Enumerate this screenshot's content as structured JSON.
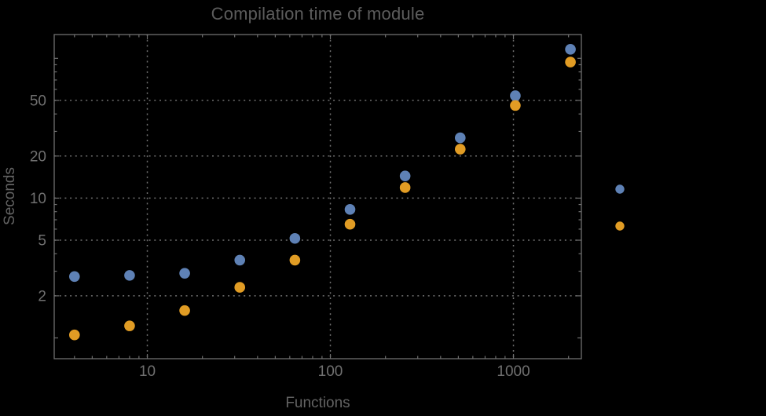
{
  "background": "#000000",
  "styles": {
    "frame_color": "#6f6f6f",
    "grid_color": "#707070",
    "tick_label_color": "#707070",
    "title_color": "#5c5c5c",
    "axis_label_color": "#636363",
    "series1_color": "#5e81b5",
    "series2_color": "#e19c24"
  },
  "chart_data": {
    "type": "scatter",
    "title": "Compilation time of module",
    "xlabel": "Functions",
    "ylabel": "Seconds",
    "x_scale": "log",
    "y_scale": "log",
    "xlim": [
      3.1,
      2350
    ],
    "ylim": [
      0.71,
      148
    ],
    "x_major_ticks": [
      10,
      100,
      1000
    ],
    "x_tick_labels": [
      "10",
      "100",
      "1000"
    ],
    "x_minor_ticks": [
      4,
      5,
      6,
      7,
      8,
      9,
      20,
      30,
      40,
      50,
      60,
      70,
      80,
      90,
      200,
      300,
      400,
      500,
      600,
      700,
      800,
      900,
      2000
    ],
    "y_major_ticks": [
      2,
      5,
      10,
      20,
      50
    ],
    "y_tick_labels": [
      "2",
      "5",
      "10",
      "20",
      "50"
    ],
    "y_medium_ticks": [
      1,
      100
    ],
    "y_minor_ticks": [
      3,
      4,
      6,
      7,
      8,
      9,
      30,
      40,
      60,
      70,
      80,
      90
    ],
    "grid": "dotted gridlines at labeled major ticks only, mirrored ticks on all four frame edges",
    "legend": {
      "position": "right-of-frame",
      "labels_visible": false,
      "markers": [
        {
          "series": "series-1",
          "color": "#5e81b5"
        },
        {
          "series": "series-2",
          "color": "#e19c24"
        }
      ]
    },
    "series": [
      {
        "name": "series-1",
        "color": "#5e81b5",
        "marker": "disk",
        "points": [
          [
            4,
            2.75
          ],
          [
            8,
            2.8
          ],
          [
            16,
            2.9
          ],
          [
            32,
            3.6
          ],
          [
            64,
            5.15
          ],
          [
            128,
            8.3
          ],
          [
            256,
            14.4
          ],
          [
            512,
            27
          ],
          [
            1024,
            54
          ],
          [
            2048,
            116
          ]
        ]
      },
      {
        "name": "series-2",
        "color": "#e19c24",
        "marker": "disk",
        "points": [
          [
            4,
            1.05
          ],
          [
            8,
            1.22
          ],
          [
            16,
            1.57
          ],
          [
            32,
            2.3
          ],
          [
            64,
            3.6
          ],
          [
            128,
            6.5
          ],
          [
            256,
            11.9
          ],
          [
            512,
            22.4
          ],
          [
            1024,
            46
          ],
          [
            2048,
            94
          ]
        ]
      }
    ]
  }
}
